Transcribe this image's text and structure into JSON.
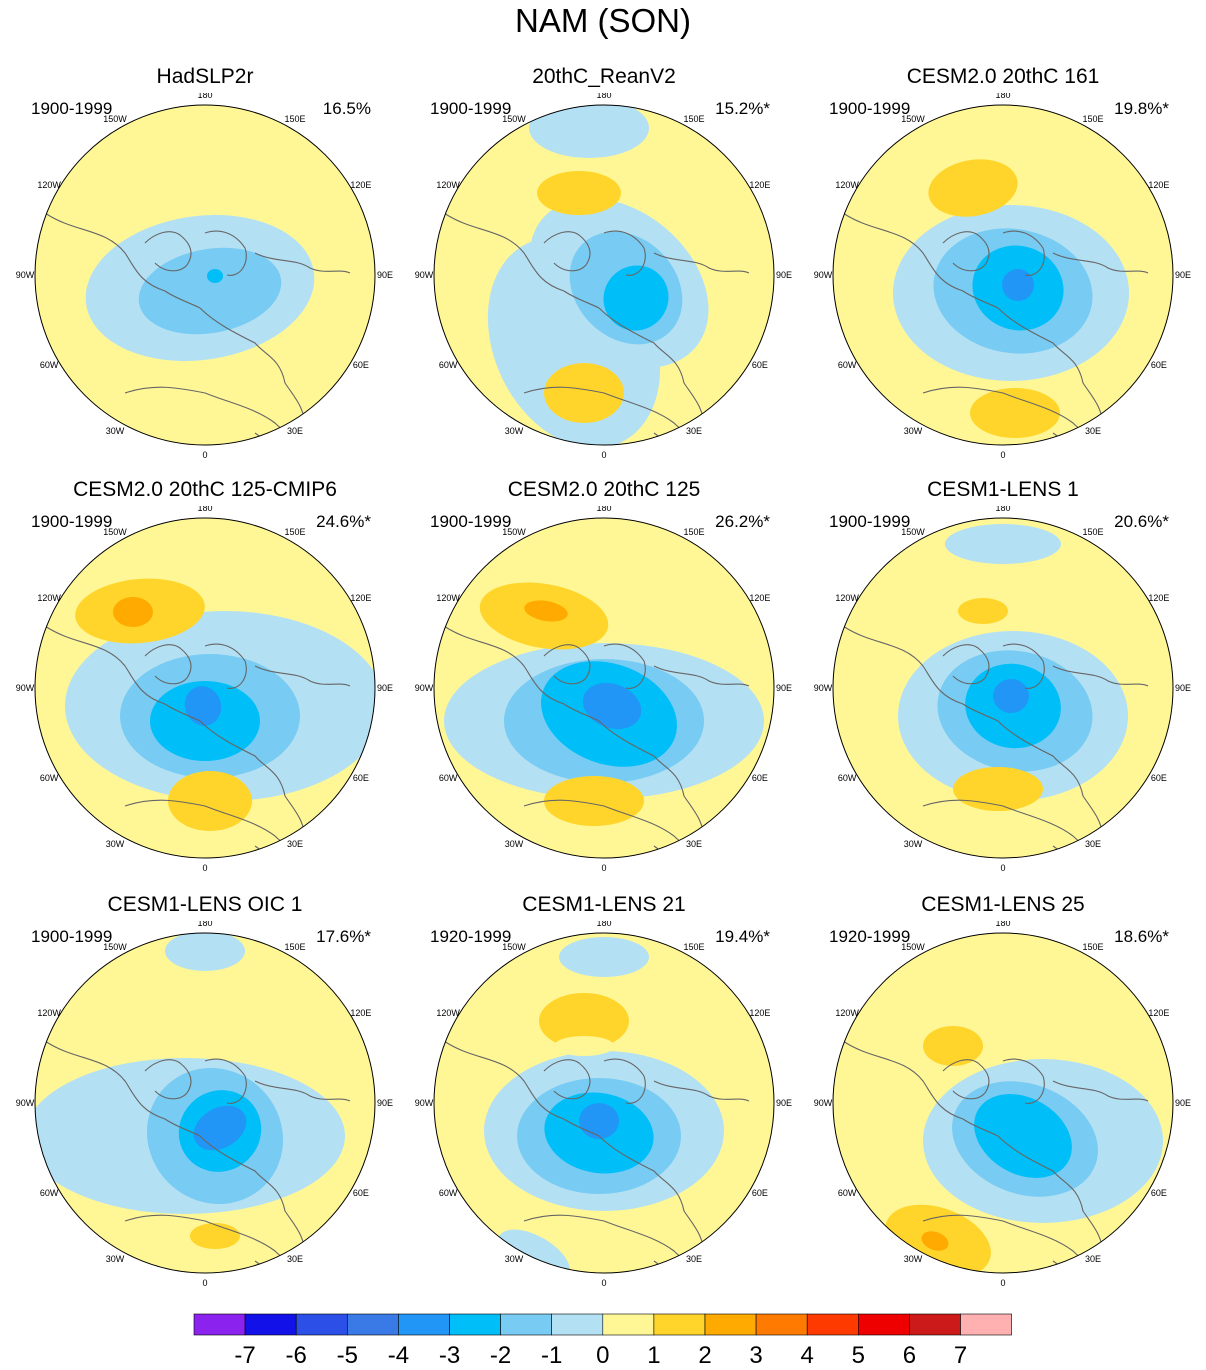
{
  "title": "NAM (SON)",
  "longitude_labels": [
    "180",
    "150E",
    "120E",
    "90E",
    "60E",
    "30E",
    "0",
    "30W",
    "60W",
    "90W",
    "120W",
    "150W"
  ],
  "chart_data": [
    {
      "type": "heatmap",
      "title": "HadSLP2r",
      "period": "1900-1999",
      "variance_explained": "16.5%",
      "projection": "north polar stereographic"
    },
    {
      "type": "heatmap",
      "title": "20thC_ReanV2",
      "period": "1900-1999",
      "variance_explained": "15.2%*",
      "projection": "north polar stereographic"
    },
    {
      "type": "heatmap",
      "title": "CESM2.0 20thC 161",
      "period": "1900-1999",
      "variance_explained": "19.8%*",
      "projection": "north polar stereographic"
    },
    {
      "type": "heatmap",
      "title": "CESM2.0 20thC 125-CMIP6",
      "period": "1900-1999",
      "variance_explained": "24.6%*",
      "projection": "north polar stereographic"
    },
    {
      "type": "heatmap",
      "title": "CESM2.0 20thC 125",
      "period": "1900-1999",
      "variance_explained": "26.2%*",
      "projection": "north polar stereographic"
    },
    {
      "type": "heatmap",
      "title": "CESM1-LENS 1",
      "period": "1900-1999",
      "variance_explained": "20.6%*",
      "projection": "north polar stereographic"
    },
    {
      "type": "heatmap",
      "title": "CESM1-LENS OIC 1",
      "period": "1900-1999",
      "variance_explained": "17.6%*",
      "projection": "north polar stereographic"
    },
    {
      "type": "heatmap",
      "title": "CESM1-LENS 21",
      "period": "1920-1999",
      "variance_explained": "19.4%*",
      "projection": "north polar stereographic"
    },
    {
      "type": "heatmap",
      "title": "CESM1-LENS 25",
      "period": "1920-1999",
      "variance_explained": "18.6%*",
      "projection": "north polar stereographic"
    }
  ],
  "colorbar": {
    "ticks": [
      "-7",
      "-6",
      "-5",
      "-4",
      "-3",
      "-2",
      "-1",
      "0",
      "1",
      "2",
      "3",
      "4",
      "5",
      "6",
      "7"
    ],
    "colors": [
      "#8b22ee",
      "#1212e8",
      "#2c4fe8",
      "#3a7ae6",
      "#2196f7",
      "#00bff8",
      "#78cbf2",
      "#b4e0f4",
      "#fff796",
      "#ffd52b",
      "#ffaa00",
      "#ff7a00",
      "#ff3a00",
      "#ee0000",
      "#cc1a1a",
      "#ffb0b0"
    ]
  },
  "colors": {
    "land_outline": "#666666",
    "background": "#ffffff",
    "neg1": "#b4e0f4",
    "neg2": "#78cbf2",
    "neg3": "#00bff8",
    "neg4": "#2196f7",
    "pos1": "#fff796",
    "pos2": "#ffd52b",
    "pos3": "#ffaa00"
  }
}
